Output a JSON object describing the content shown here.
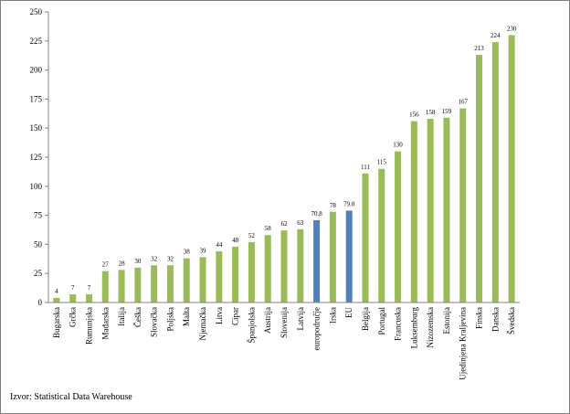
{
  "source_note": "Izvor: Statistical Data Warehouse",
  "colors": {
    "default_bar": "#9bbb59",
    "highlight_bar": "#4f81bd",
    "axis": "#868686",
    "grid": "#d9d9d9"
  },
  "chart_data": {
    "type": "bar",
    "title": "",
    "xlabel": "",
    "ylabel": "",
    "ylim": [
      0,
      250
    ],
    "yticks": [
      0,
      25,
      50,
      75,
      100,
      125,
      150,
      175,
      200,
      225,
      250
    ],
    "grid": false,
    "legend": "none",
    "categories": [
      "Bugarska",
      "Grčka",
      "Rumunjska",
      "Mađarska",
      "Italija",
      "Češka",
      "Slovačka",
      "Poljska",
      "Malta",
      "Njemačka",
      "Litva",
      "Cipar",
      "Španjolska",
      "Austrija",
      "Slovenija",
      "Latvija",
      "europodručje",
      "Irska",
      "EU",
      "Belgija",
      "Portugal",
      "Francuska",
      "Luksemburg",
      "Nizozemska",
      "Estonija",
      "Ujedinjena Kraljevina",
      "Finska",
      "Danska",
      "Švedska"
    ],
    "values": [
      4,
      7,
      7,
      27,
      28,
      30,
      32,
      32,
      38,
      39,
      44,
      48,
      52,
      58,
      62,
      63,
      70.8,
      78,
      79.0,
      111,
      115,
      130,
      156,
      158,
      159,
      167,
      213,
      224,
      230
    ],
    "data_labels": [
      "4",
      "7",
      "7",
      "27",
      "28",
      "30",
      "32",
      "32",
      "38",
      "39",
      "44",
      "48",
      "52",
      "58",
      "62",
      "63",
      "70.8",
      "78",
      "79.0",
      "111",
      "115",
      "130",
      "156",
      "158",
      "159",
      "167",
      "213",
      "224",
      "230"
    ],
    "highlighted": [
      "europodručje",
      "EU"
    ]
  }
}
